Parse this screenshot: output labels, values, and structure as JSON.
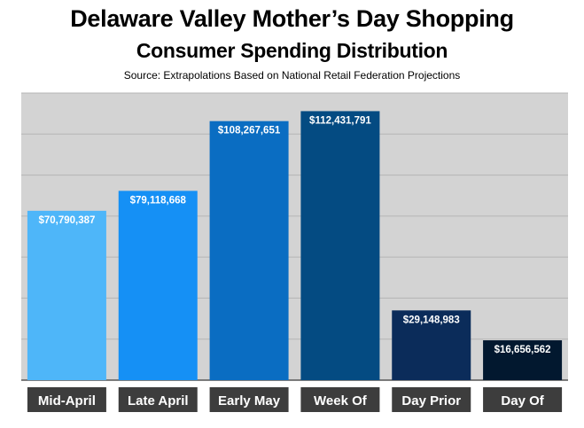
{
  "title": "Delaware Valley Mother’s Day Shopping",
  "subtitle": "Consumer Spending Distribution",
  "source": "Source: Extrapolations Based on National Retail Federation Projections",
  "chart_data": {
    "type": "bar",
    "title": "Delaware Valley Mother’s Day Shopping",
    "subtitle": "Consumer Spending Distribution",
    "xlabel": "",
    "ylabel": "",
    "ylim": [
      0,
      120000000
    ],
    "grid": true,
    "categories": [
      "Mid-April",
      "Late April",
      "Early May",
      "Week Of",
      "Day Prior",
      "Day Of"
    ],
    "values": [
      70790387,
      79118668,
      108267651,
      112431791,
      29148983,
      16656562
    ],
    "value_labels": [
      "$70,790,387",
      "$79,118,668",
      "$108,267,651",
      "$112,431,791",
      "$29,148,983",
      "$16,656,562"
    ],
    "bar_colors": [
      "#4eb6f9",
      "#1590f5",
      "#0a6dc2",
      "#044b82",
      "#0b2c5a",
      "#02182f"
    ],
    "plot_background": "#d3d3d3",
    "label_background": "#3d3d3d"
  }
}
